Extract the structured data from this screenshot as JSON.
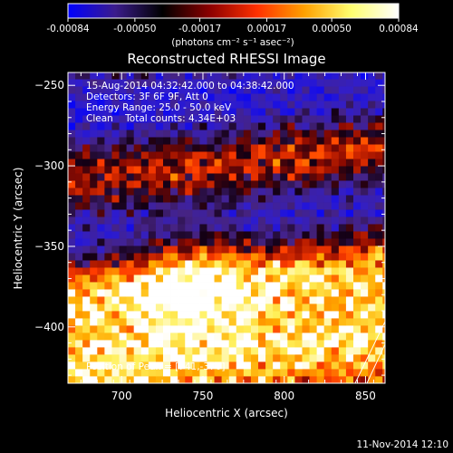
{
  "chart_data": {
    "type": "heatmap",
    "title": "Reconstructed RHESSI Image",
    "xlabel": "Heliocentric X (arcsec)",
    "ylabel": "Heliocentric Y (arcsec)",
    "xlim": [
      667,
      862
    ],
    "ylim": [
      -435,
      -242
    ],
    "x_ticks": [
      700,
      750,
      800,
      850
    ],
    "y_ticks": [
      -400,
      -350,
      -300,
      -250
    ],
    "colorbar": {
      "range": [
        -0.00084,
        0.00084
      ],
      "ticks": [
        "-0.00084",
        "-0.00050",
        "-0.00017",
        "0.00017",
        "0.00050",
        "0.00084"
      ],
      "units": "(photons cm⁻² s⁻¹ asec⁻²)",
      "colors": [
        "#0000ff",
        "#3b1c8c",
        "#000000",
        "#8b0000",
        "#ff3000",
        "#ffa000",
        "#ffff70",
        "#ffffff"
      ]
    },
    "annotations": [
      "15-Aug-2014 04:32:42.000 to 04:38:42.000",
      "Detectors: 3F 6F 9F, Att 0",
      "Energy Range: 25.0 - 50.0 keV",
      "Clean    Total counts: 4.34E+03"
    ],
    "peak_label": "Position of Peak = [741,-370]",
    "peak": [
      741,
      -370
    ],
    "bands": [
      {
        "kind": "bright",
        "y_center": -370,
        "amplitude": 0.0008
      },
      {
        "kind": "bright",
        "y_center": -300,
        "amplitude": 0.0006
      },
      {
        "kind": "bright",
        "y_center": -420,
        "amplitude": 0.0007
      },
      {
        "kind": "dark",
        "y_center": -335,
        "amplitude": -0.0007
      },
      {
        "kind": "dark",
        "y_center": -265,
        "amplitude": -0.0006
      }
    ],
    "grid": false
  },
  "footer": {
    "timestamp": "11-Nov-2014 12:10"
  }
}
